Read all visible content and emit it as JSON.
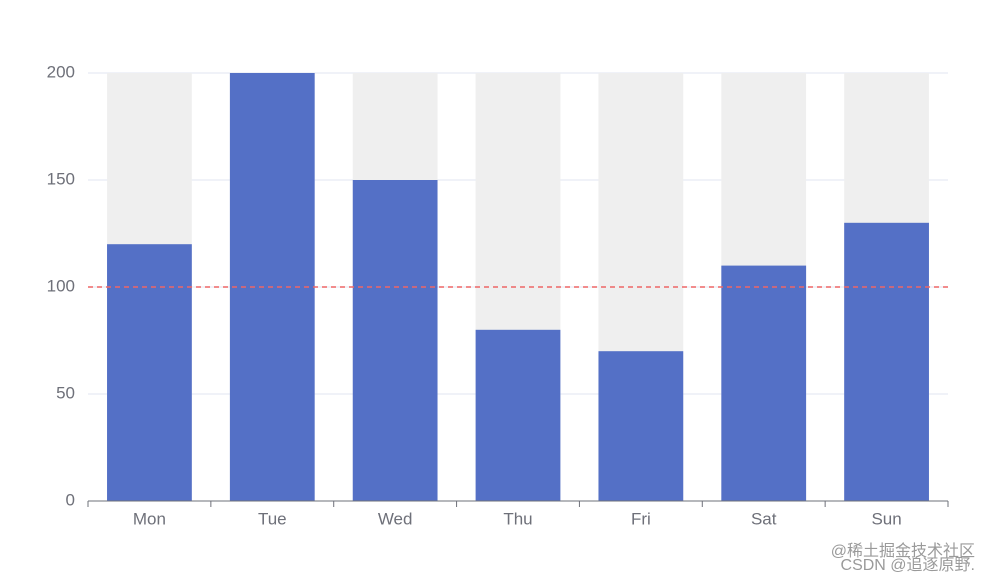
{
  "chart_data": {
    "type": "bar",
    "categories": [
      "Mon",
      "Tue",
      "Wed",
      "Thu",
      "Fri",
      "Sat",
      "Sun"
    ],
    "values": [
      120,
      200,
      150,
      80,
      70,
      110,
      130
    ],
    "color": "#5470c6",
    "background_color": "#efefef",
    "ylim": [
      0,
      200
    ],
    "yticks": [
      0,
      50,
      100,
      150,
      200
    ],
    "grid": true,
    "mark_line": {
      "value": 100,
      "color": "#ee6666"
    },
    "watermark": [
      "@稀土掘金技术社区",
      "CSDN @追逐原野."
    ]
  }
}
